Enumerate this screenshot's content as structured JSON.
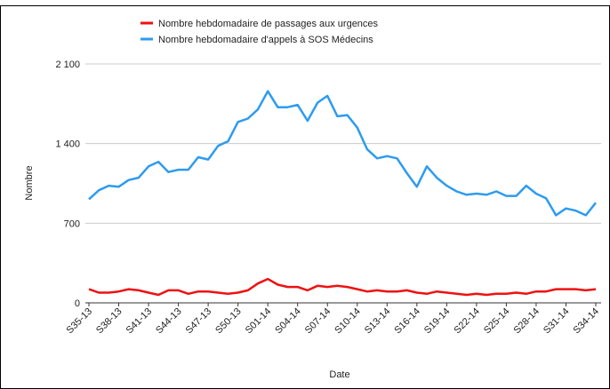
{
  "chart_data": {
    "type": "line",
    "categories": [
      "S35-13",
      null,
      null,
      "S38-13",
      null,
      null,
      "S41-13",
      null,
      null,
      "S44-13",
      null,
      null,
      "S47-13",
      null,
      null,
      "S50-13",
      null,
      null,
      "S01-14",
      null,
      null,
      "S04-14",
      null,
      null,
      "S07-14",
      null,
      null,
      "S10-14",
      null,
      null,
      "S13-14",
      null,
      null,
      "S16-14",
      null,
      null,
      "S19-14",
      null,
      null,
      "S22-14",
      null,
      null,
      "S25-14",
      null,
      null,
      "S28-14",
      null,
      null,
      "S31-14",
      null,
      null,
      "S34-14"
    ],
    "series": [
      {
        "name": "Nombre hebdomadaire de passages aux urgences",
        "color": "#ee1111",
        "values": [
          120,
          90,
          90,
          100,
          120,
          110,
          90,
          70,
          110,
          110,
          80,
          100,
          100,
          90,
          80,
          90,
          110,
          170,
          210,
          160,
          140,
          140,
          110,
          150,
          140,
          150,
          140,
          120,
          100,
          110,
          100,
          100,
          110,
          90,
          80,
          100,
          90,
          80,
          70,
          80,
          70,
          80,
          80,
          90,
          80,
          100,
          100,
          120,
          120,
          120,
          110,
          120
        ]
      },
      {
        "name": "Nombre hebdomadaire d'appels à SOS Médecins",
        "color": "#2d9bf0",
        "values": [
          910,
          990,
          1030,
          1020,
          1080,
          1100,
          1200,
          1240,
          1150,
          1170,
          1170,
          1280,
          1260,
          1380,
          1420,
          1590,
          1620,
          1700,
          1860,
          1720,
          1720,
          1740,
          1600,
          1760,
          1820,
          1640,
          1650,
          1540,
          1350,
          1270,
          1290,
          1270,
          1140,
          1020,
          1200,
          1100,
          1030,
          980,
          950,
          960,
          950,
          980,
          940,
          940,
          1030,
          960,
          920,
          770,
          830,
          810,
          770,
          880
        ]
      }
    ],
    "xlabel": "Date",
    "ylabel": "Nombre",
    "ylim": [
      0,
      2100
    ],
    "yticks": [
      0,
      700,
      {
        "value": 1400,
        "label": "1 400"
      },
      {
        "value": 2100,
        "label": "2 100"
      }
    ],
    "grid": true
  }
}
